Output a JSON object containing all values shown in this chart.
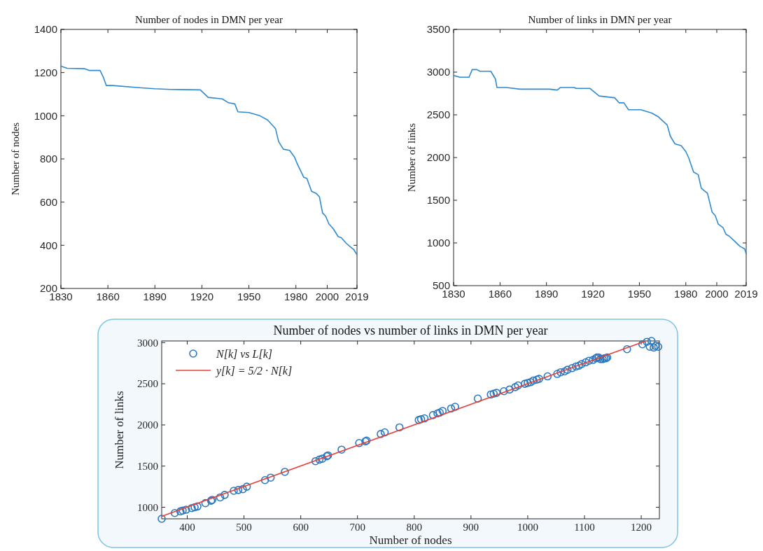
{
  "chart_data": [
    {
      "type": "line",
      "title": "Number of nodes in DMN per year",
      "ylabel": "Number of nodes",
      "xlim": [
        1830,
        2019
      ],
      "xticks": [
        1830,
        1860,
        1890,
        1920,
        1950,
        1980,
        2000,
        2019
      ],
      "ylim": [
        200,
        1400
      ],
      "yticks": [
        200,
        400,
        600,
        800,
        1000,
        1200,
        1400
      ],
      "grid": false,
      "legend": false,
      "series": [
        {
          "color": "#2f8ad0",
          "x": [
            1830,
            1832,
            1834,
            1845,
            1848,
            1855,
            1857,
            1859,
            1863,
            1880,
            1890,
            1900,
            1919,
            1924,
            1933,
            1937,
            1941,
            1943,
            1950,
            1957,
            1962,
            1967,
            1969,
            1972,
            1976,
            1979,
            1981,
            1985,
            1987,
            1990,
            1993,
            1995,
            1997,
            1999,
            2001,
            2004,
            2007,
            2009,
            2012,
            2016,
            2017,
            2019
          ],
          "values": [
            1230,
            1225,
            1220,
            1218,
            1210,
            1210,
            1180,
            1140,
            1140,
            1130,
            1125,
            1122,
            1120,
            1085,
            1078,
            1060,
            1055,
            1018,
            1015,
            1000,
            980,
            940,
            880,
            845,
            840,
            810,
            775,
            715,
            710,
            650,
            640,
            625,
            550,
            535,
            500,
            475,
            440,
            435,
            410,
            385,
            380,
            355
          ]
        }
      ]
    },
    {
      "type": "line",
      "title": "Number of links in DMN per year",
      "ylabel": "Number of links",
      "xlim": [
        1830,
        2019
      ],
      "xticks": [
        1830,
        1860,
        1890,
        1920,
        1950,
        1980,
        2000,
        2019
      ],
      "ylim": [
        500,
        3500
      ],
      "yticks": [
        500,
        1000,
        1500,
        2000,
        2500,
        3000,
        3500
      ],
      "grid": false,
      "legend": false,
      "series": [
        {
          "color": "#2f8ad0",
          "x": [
            1830,
            1834,
            1840,
            1842,
            1845,
            1847,
            1854,
            1857,
            1858,
            1864,
            1873,
            1892,
            1897,
            1899,
            1908,
            1909,
            1918,
            1924,
            1934,
            1937,
            1940,
            1943,
            1951,
            1958,
            1962,
            1968,
            1970,
            1973,
            1977,
            1980,
            1982,
            1985,
            1988,
            1990,
            1994,
            1997,
            1999,
            2001,
            2004,
            2006,
            2008,
            2011,
            2015,
            2018,
            2019
          ],
          "values": [
            2960,
            2940,
            2940,
            3030,
            3030,
            3010,
            3010,
            2920,
            2820,
            2820,
            2800,
            2800,
            2790,
            2820,
            2820,
            2810,
            2810,
            2720,
            2700,
            2640,
            2640,
            2560,
            2560,
            2520,
            2480,
            2380,
            2250,
            2160,
            2140,
            2070,
            1990,
            1830,
            1800,
            1640,
            1580,
            1360,
            1320,
            1220,
            1180,
            1100,
            1080,
            1030,
            960,
            930,
            870
          ]
        }
      ]
    },
    {
      "type": "scatter",
      "title": "Number of nodes vs number of links in DMN per year",
      "xlabel": "Number of nodes",
      "ylabel": "Number of links",
      "xlim": [
        355,
        1232
      ],
      "xticks": [
        400,
        500,
        600,
        700,
        800,
        900,
        1000,
        1100,
        1200
      ],
      "ylim": [
        860,
        3020
      ],
      "yticks": [
        1000,
        1500,
        2000,
        2500,
        3000
      ],
      "grid": false,
      "legend": "top left",
      "series": [
        {
          "marker": "circle",
          "name": "N[k] vs L[k]",
          "color": "#2a78c0",
          "x": [
            355,
            378,
            388,
            392,
            398,
            408,
            413,
            418,
            432,
            442,
            444,
            458,
            466,
            482,
            490,
            498,
            505,
            537,
            547,
            572,
            626,
            633,
            638,
            646,
            648,
            672,
            703,
            714,
            716,
            741,
            748,
            774,
            808,
            812,
            818,
            833,
            841,
            845,
            850,
            865,
            872,
            912,
            935,
            940,
            945,
            958,
            968,
            978,
            983,
            995,
            1000,
            1005,
            1010,
            1016,
            1020,
            1035,
            1052,
            1058,
            1065,
            1070,
            1078,
            1085,
            1090,
            1095,
            1102,
            1108,
            1115,
            1120,
            1122,
            1125,
            1128,
            1132,
            1135,
            1138,
            1140,
            1175,
            1202,
            1210,
            1215,
            1218,
            1222,
            1225,
            1230
          ],
          "values": [
            860,
            930,
            950,
            960,
            970,
            990,
            1000,
            1010,
            1050,
            1080,
            1090,
            1120,
            1150,
            1200,
            1210,
            1220,
            1250,
            1330,
            1360,
            1430,
            1560,
            1580,
            1590,
            1620,
            1630,
            1700,
            1780,
            1800,
            1810,
            1890,
            1910,
            1970,
            2060,
            2070,
            2080,
            2120,
            2140,
            2150,
            2170,
            2200,
            2220,
            2320,
            2370,
            2380,
            2390,
            2410,
            2430,
            2460,
            2480,
            2500,
            2510,
            2520,
            2540,
            2550,
            2560,
            2590,
            2620,
            2640,
            2650,
            2670,
            2690,
            2710,
            2720,
            2740,
            2760,
            2780,
            2790,
            2810,
            2820,
            2820,
            2800,
            2800,
            2810,
            2810,
            2820,
            2920,
            2980,
            3010,
            2950,
            3020,
            2940,
            2960,
            2950
          ]
        },
        {
          "type": "line",
          "name": "y[k] = 5/2 · N[k]",
          "color": "#e8403a",
          "x": [
            355,
            1208
          ],
          "values": [
            890,
            3020
          ]
        }
      ]
    }
  ]
}
